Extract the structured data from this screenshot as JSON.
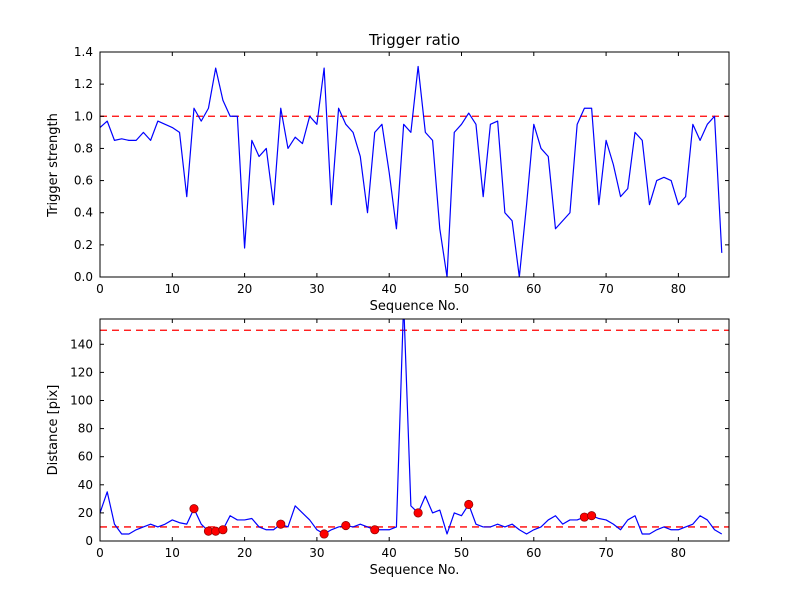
{
  "figure": {
    "background": "#ffffff",
    "line_color": "#0000ff",
    "dashed_color": "#ff0000",
    "marker_color": "#ff0000",
    "frame_color": "#000000"
  },
  "chart_data": [
    {
      "type": "line",
      "title": "Trigger ratio",
      "xlabel": "Sequence No.",
      "ylabel": "Trigger strength",
      "xlim": [
        0,
        87
      ],
      "ylim": [
        0,
        1.4
      ],
      "grid": false,
      "xticks": [
        0,
        10,
        20,
        30,
        40,
        50,
        60,
        70,
        80
      ],
      "xticklabels": [
        "0",
        "10",
        "20",
        "30",
        "40",
        "50",
        "60",
        "70",
        "80"
      ],
      "yticks": [
        0.0,
        0.2,
        0.4,
        0.6,
        0.8,
        1.0,
        1.2,
        1.4
      ],
      "yticklabels": [
        "0.0",
        "0.2",
        "0.4",
        "0.6",
        "0.8",
        "1.0",
        "1.2",
        "1.4"
      ],
      "hlines": [
        1.0
      ],
      "series": [
        {
          "name": "trigger-strength",
          "color": "#0000ff",
          "values": [
            0.93,
            0.97,
            0.85,
            0.86,
            0.85,
            0.85,
            0.9,
            0.85,
            0.97,
            0.95,
            0.93,
            0.9,
            0.5,
            1.05,
            0.97,
            1.05,
            1.3,
            1.1,
            1.0,
            1.0,
            0.18,
            0.85,
            0.75,
            0.8,
            0.45,
            1.05,
            0.8,
            0.87,
            0.83,
            1.0,
            0.95,
            1.3,
            0.45,
            1.05,
            0.95,
            0.9,
            0.75,
            0.4,
            0.9,
            0.95,
            0.65,
            0.3,
            0.95,
            0.9,
            1.31,
            0.9,
            0.85,
            0.3,
            0.0,
            0.9,
            0.95,
            1.02,
            0.95,
            0.5,
            0.95,
            0.97,
            0.4,
            0.35,
            0.0,
            0.45,
            0.95,
            0.8,
            0.75,
            0.3,
            0.35,
            0.4,
            0.95,
            1.05,
            1.05,
            0.45,
            0.85,
            0.7,
            0.5,
            0.55,
            0.9,
            0.85,
            0.45,
            0.6,
            0.62,
            0.6,
            0.45,
            0.5,
            0.95,
            0.85,
            0.95,
            1.0,
            0.15
          ]
        }
      ]
    },
    {
      "type": "line",
      "title": "",
      "xlabel": "Sequence No.",
      "ylabel": "Distance [pix]",
      "xlim": [
        0,
        87
      ],
      "ylim": [
        0,
        158
      ],
      "grid": false,
      "xticks": [
        0,
        10,
        20,
        30,
        40,
        50,
        60,
        70,
        80
      ],
      "xticklabels": [
        "0",
        "10",
        "20",
        "30",
        "40",
        "50",
        "60",
        "70",
        "80"
      ],
      "yticks": [
        0,
        20,
        40,
        60,
        80,
        100,
        120,
        140
      ],
      "yticklabels": [
        "0",
        "20",
        "40",
        "60",
        "80",
        "100",
        "120",
        "140"
      ],
      "hlines": [
        150,
        10
      ],
      "series": [
        {
          "name": "distance",
          "color": "#0000ff",
          "values": [
            20,
            35,
            12,
            5,
            5,
            8,
            10,
            12,
            10,
            12,
            15,
            13,
            12,
            23,
            12,
            7,
            7,
            8,
            18,
            15,
            15,
            16,
            10,
            8,
            8,
            12,
            10,
            25,
            20,
            15,
            8,
            5,
            8,
            10,
            11,
            10,
            12,
            10,
            8,
            8,
            8,
            10,
            170,
            25,
            20,
            32,
            20,
            22,
            5,
            20,
            18,
            26,
            12,
            10,
            10,
            12,
            10,
            12,
            8,
            5,
            8,
            10,
            15,
            18,
            12,
            15,
            15,
            17,
            18,
            16,
            15,
            12,
            8,
            15,
            18,
            5,
            5,
            8,
            10,
            8,
            8,
            10,
            12,
            18,
            15,
            8,
            5
          ]
        }
      ],
      "markers": {
        "color": "#ff0000",
        "points": [
          [
            13,
            23
          ],
          [
            15,
            7
          ],
          [
            16,
            7
          ],
          [
            17,
            8
          ],
          [
            25,
            12
          ],
          [
            31,
            5
          ],
          [
            34,
            11
          ],
          [
            38,
            8
          ],
          [
            44,
            20
          ],
          [
            51,
            26
          ],
          [
            67,
            17
          ],
          [
            68,
            18
          ]
        ]
      }
    }
  ]
}
